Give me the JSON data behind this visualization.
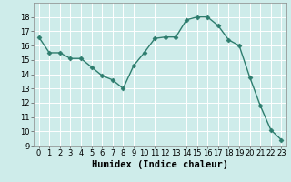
{
  "xlabel": "Humidex (Indice chaleur)",
  "x": [
    0,
    1,
    2,
    3,
    4,
    5,
    6,
    7,
    8,
    9,
    10,
    11,
    12,
    13,
    14,
    15,
    16,
    17,
    18,
    19,
    20,
    21,
    22,
    23
  ],
  "y": [
    16.6,
    15.5,
    15.5,
    15.1,
    15.1,
    14.5,
    13.9,
    13.6,
    13.0,
    14.6,
    15.5,
    16.5,
    16.6,
    16.6,
    17.8,
    18.0,
    18.0,
    17.4,
    16.4,
    16.0,
    13.8,
    11.8,
    10.1,
    9.4
  ],
  "line_color": "#2e7d6e",
  "marker": "D",
  "marker_size": 2.5,
  "line_width": 1.0,
  "background_color": "#ceecea",
  "grid_color": "#ffffff",
  "ylim": [
    9,
    19
  ],
  "xlim": [
    -0.5,
    23.5
  ],
  "yticks": [
    9,
    10,
    11,
    12,
    13,
    14,
    15,
    16,
    17,
    18
  ],
  "xticks": [
    0,
    1,
    2,
    3,
    4,
    5,
    6,
    7,
    8,
    9,
    10,
    11,
    12,
    13,
    14,
    15,
    16,
    17,
    18,
    19,
    20,
    21,
    22,
    23
  ],
  "tick_fontsize": 6,
  "xlabel_fontsize": 7.5
}
